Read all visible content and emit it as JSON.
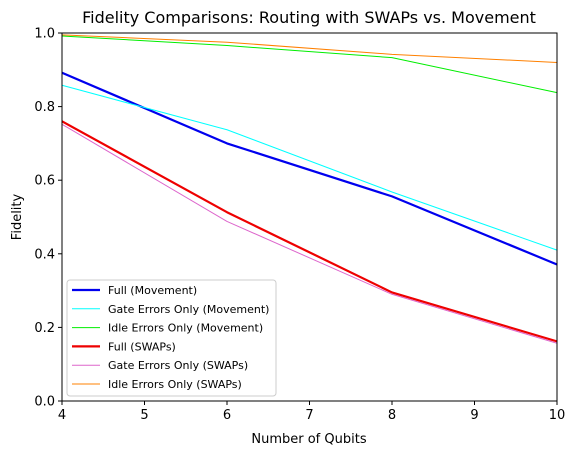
{
  "chart_data": {
    "type": "line",
    "title": "Fidelity Comparisons: Routing with SWAPs vs. Movement",
    "xlabel": "Number of Qubits",
    "ylabel": "Fidelity",
    "xlim": [
      4,
      10
    ],
    "ylim": [
      0,
      1
    ],
    "xticks": [
      4,
      5,
      6,
      7,
      8,
      9,
      10
    ],
    "yticks": [
      0.0,
      0.2,
      0.4,
      0.6,
      0.8,
      1.0
    ],
    "ytick_labels": [
      "0.0",
      "0.2",
      "0.4",
      "0.6",
      "0.8",
      "1.0"
    ],
    "grid": false,
    "legend_position": "lower-left",
    "x": [
      4,
      6,
      8,
      10
    ],
    "series": [
      {
        "name": "Full (Movement)",
        "color": "#0000ee",
        "width": "thick",
        "values": [
          0.892,
          0.7,
          0.556,
          0.371
        ]
      },
      {
        "name": "Gate Errors Only (Movement)",
        "color": "#00ffff",
        "width": "thin",
        "values": [
          0.858,
          0.737,
          0.568,
          0.41
        ]
      },
      {
        "name": "Idle Errors Only (Movement)",
        "color": "#00ee00",
        "width": "thin",
        "values": [
          0.992,
          0.966,
          0.933,
          0.838
        ]
      },
      {
        "name": "Full (SWAPs)",
        "color": "#ee0000",
        "width": "thick",
        "values": [
          0.76,
          0.513,
          0.295,
          0.162
        ]
      },
      {
        "name": "Gate Errors Only (SWAPs)",
        "color": "#dd66cc",
        "width": "thin",
        "values": [
          0.752,
          0.488,
          0.29,
          0.157
        ]
      },
      {
        "name": "Idle Errors Only (SWAPs)",
        "color": "#ff8000",
        "width": "thin",
        "values": [
          0.995,
          0.975,
          0.942,
          0.92
        ]
      }
    ]
  }
}
